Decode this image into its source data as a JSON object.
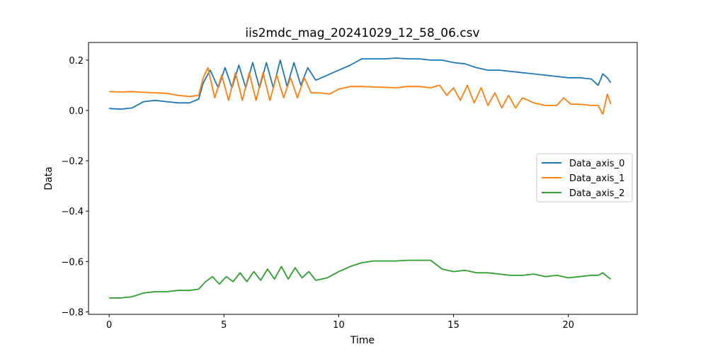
{
  "chart_data": {
    "type": "line",
    "title": "iis2mdc_mag_20241029_12_58_06.csv",
    "xlabel": "Time",
    "ylabel": "Data",
    "xlim": [
      -0.9,
      23.0
    ],
    "ylim": [
      -0.81,
      0.27
    ],
    "xticks": [
      0,
      5,
      10,
      15,
      20
    ],
    "xtick_labels": [
      "0",
      "5",
      "10",
      "15",
      "20"
    ],
    "yticks": [
      -0.8,
      -0.6,
      -0.4,
      -0.2,
      0.0,
      0.2
    ],
    "ytick_labels": [
      "−0.8",
      "−0.6",
      "−0.4",
      "−0.2",
      "0.0",
      "0.2"
    ],
    "grid": false,
    "legend_position": "center-right",
    "series": [
      {
        "name": "Data_axis_0",
        "color": "#1f77b4",
        "x": [
          0,
          0.5,
          1.0,
          1.5,
          2.0,
          2.5,
          3.0,
          3.5,
          3.9,
          4.1,
          4.4,
          4.75,
          5.05,
          5.35,
          5.65,
          5.95,
          6.25,
          6.55,
          6.85,
          7.15,
          7.45,
          7.75,
          8.05,
          8.35,
          8.65,
          9.0,
          9.5,
          10.0,
          10.5,
          11.0,
          11.5,
          12.0,
          12.5,
          13.0,
          13.5,
          14.0,
          14.5,
          15.0,
          15.5,
          16.0,
          16.5,
          17.0,
          17.5,
          18.0,
          18.5,
          19.0,
          19.5,
          20.0,
          20.5,
          21.0,
          21.3,
          21.5,
          21.7,
          21.85
        ],
        "y": [
          0.008,
          0.005,
          0.01,
          0.035,
          0.04,
          0.035,
          0.03,
          0.03,
          0.045,
          0.11,
          0.16,
          0.09,
          0.17,
          0.09,
          0.18,
          0.09,
          0.19,
          0.09,
          0.19,
          0.09,
          0.2,
          0.095,
          0.19,
          0.1,
          0.17,
          0.12,
          0.14,
          0.16,
          0.18,
          0.205,
          0.205,
          0.205,
          0.208,
          0.205,
          0.205,
          0.2,
          0.2,
          0.19,
          0.185,
          0.17,
          0.16,
          0.16,
          0.155,
          0.15,
          0.145,
          0.14,
          0.135,
          0.13,
          0.13,
          0.125,
          0.1,
          0.145,
          0.13,
          0.11
        ]
      },
      {
        "name": "Data_axis_1",
        "color": "#ff7f0e",
        "x": [
          0,
          0.5,
          1.0,
          1.5,
          2.0,
          2.5,
          3.0,
          3.5,
          3.9,
          4.1,
          4.3,
          4.6,
          4.9,
          5.2,
          5.5,
          5.8,
          6.1,
          6.4,
          6.7,
          7.0,
          7.3,
          7.6,
          7.9,
          8.2,
          8.5,
          8.8,
          9.2,
          9.6,
          10.0,
          10.5,
          11.0,
          11.5,
          12.0,
          12.5,
          13.0,
          13.5,
          14.0,
          14.4,
          14.7,
          15.0,
          15.3,
          15.6,
          15.9,
          16.2,
          16.5,
          16.8,
          17.1,
          17.4,
          17.7,
          18.0,
          18.5,
          19.0,
          19.5,
          19.8,
          20.1,
          20.5,
          21.0,
          21.3,
          21.5,
          21.7,
          21.85
        ],
        "y": [
          0.075,
          0.073,
          0.075,
          0.072,
          0.07,
          0.068,
          0.06,
          0.055,
          0.06,
          0.13,
          0.17,
          0.05,
          0.14,
          0.04,
          0.15,
          0.04,
          0.15,
          0.04,
          0.15,
          0.04,
          0.14,
          0.05,
          0.13,
          0.05,
          0.13,
          0.07,
          0.07,
          0.065,
          0.085,
          0.095,
          0.095,
          0.093,
          0.092,
          0.09,
          0.095,
          0.095,
          0.09,
          0.1,
          0.06,
          0.09,
          0.04,
          0.1,
          0.03,
          0.09,
          0.02,
          0.07,
          0.01,
          0.06,
          0.01,
          0.05,
          0.03,
          0.02,
          0.02,
          0.05,
          0.025,
          0.025,
          0.02,
          0.02,
          -0.015,
          0.065,
          0.025
        ]
      },
      {
        "name": "Data_axis_2",
        "color": "#2ca02c",
        "x": [
          0,
          0.5,
          1.0,
          1.5,
          2.0,
          2.5,
          3.0,
          3.5,
          3.9,
          4.2,
          4.5,
          4.8,
          5.1,
          5.4,
          5.7,
          6.0,
          6.3,
          6.6,
          6.9,
          7.2,
          7.5,
          7.8,
          8.1,
          8.4,
          8.7,
          9.0,
          9.5,
          10.0,
          10.5,
          11.0,
          11.5,
          12.0,
          12.5,
          13.0,
          13.5,
          14.0,
          14.5,
          15.0,
          15.5,
          16.0,
          16.5,
          17.0,
          17.5,
          18.0,
          18.5,
          19.0,
          19.5,
          20.0,
          20.5,
          21.0,
          21.3,
          21.5,
          21.7,
          21.85
        ],
        "y": [
          -0.745,
          -0.745,
          -0.74,
          -0.725,
          -0.72,
          -0.72,
          -0.715,
          -0.715,
          -0.71,
          -0.68,
          -0.66,
          -0.69,
          -0.66,
          -0.68,
          -0.645,
          -0.68,
          -0.64,
          -0.675,
          -0.63,
          -0.67,
          -0.62,
          -0.67,
          -0.625,
          -0.665,
          -0.64,
          -0.675,
          -0.665,
          -0.64,
          -0.62,
          -0.605,
          -0.598,
          -0.598,
          -0.598,
          -0.595,
          -0.595,
          -0.595,
          -0.63,
          -0.64,
          -0.635,
          -0.645,
          -0.645,
          -0.65,
          -0.655,
          -0.655,
          -0.65,
          -0.66,
          -0.655,
          -0.665,
          -0.66,
          -0.655,
          -0.655,
          -0.645,
          -0.66,
          -0.67
        ]
      }
    ]
  }
}
